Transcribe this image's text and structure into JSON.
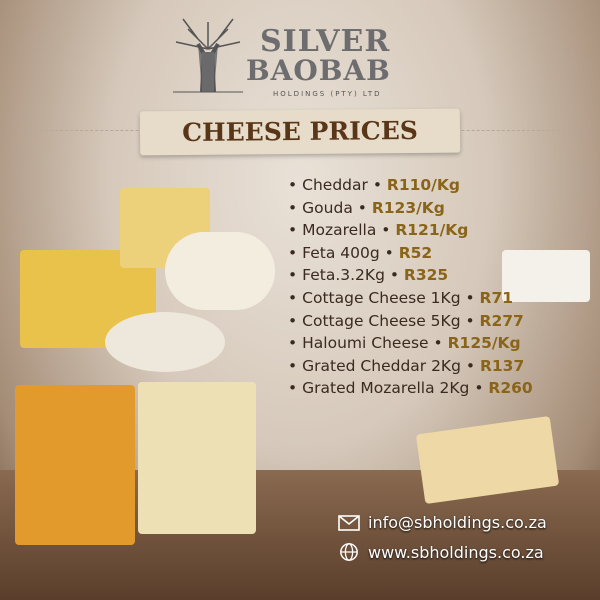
{
  "brand": {
    "name_line1": "SILVER",
    "name_line2": "BAOBAB",
    "subtitle": "HOLDINGS (PTY) LTD"
  },
  "title": "CHEESE PRICES",
  "items": [
    {
      "name": "Cheddar",
      "price": "R110/Kg"
    },
    {
      "name": "Gouda",
      "price": "R123/Kg"
    },
    {
      "name": "Mozarella",
      "price": "R121/Kg"
    },
    {
      "name": "Feta 400g",
      "price": "R52"
    },
    {
      "name": "Feta.3.2Kg",
      "price": "R325"
    },
    {
      "name": "Cottage Cheese 1Kg",
      "price": "R71"
    },
    {
      "name": "Cottage Cheese 5Kg",
      "price": "R277"
    },
    {
      "name": "Haloumi Cheese",
      "price": "R125/Kg"
    },
    {
      "name": "Grated Cheddar 2Kg",
      "price": "R137"
    },
    {
      "name": "Grated Mozarella 2Kg",
      "price": "R260"
    }
  ],
  "contact": {
    "email": "info@sbholdings.co.za",
    "website": "www.sbholdings.co.za",
    "email_icon": "envelope-icon",
    "web_icon": "globe-icon"
  },
  "colors": {
    "price": "#8a6418",
    "title": "#5a3618"
  }
}
